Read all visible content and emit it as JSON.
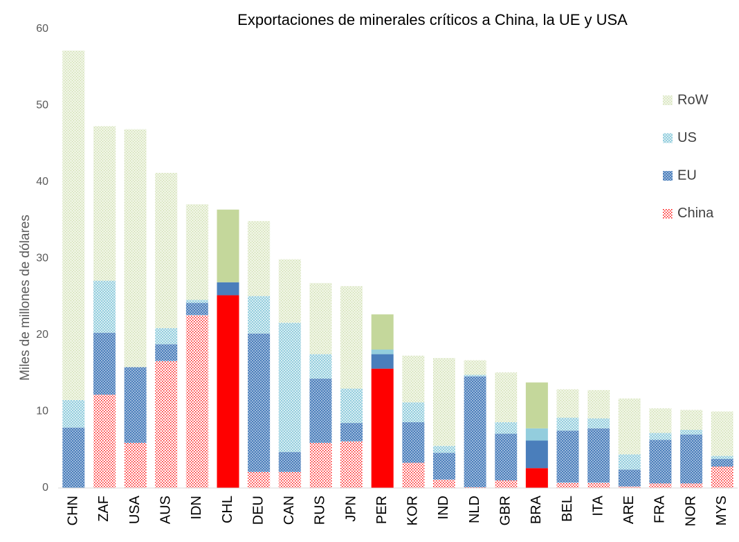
{
  "chart_data": {
    "type": "stacked_bar",
    "title": "Exportaciones de minerales críticos a China, la UE y USA",
    "y_label": "Miles de millones de dólares",
    "categories": [
      "CHN",
      "ZAF",
      "USA",
      "AUS",
      "IDN",
      "CHL",
      "DEU",
      "CAN",
      "RUS",
      "JPN",
      "PER",
      "KOR",
      "IND",
      "NLD",
      "GBR",
      "BRA",
      "BEL",
      "ITA",
      "ARE",
      "FRA",
      "NOR",
      "MYS"
    ],
    "bar_fills": [
      "pattern",
      "pattern",
      "pattern",
      "pattern",
      "pattern",
      "solid",
      "pattern",
      "pattern",
      "pattern",
      "pattern",
      "solid",
      "pattern",
      "pattern",
      "pattern",
      "pattern",
      "solid",
      "pattern",
      "pattern",
      "pattern",
      "pattern",
      "pattern",
      "pattern"
    ],
    "series": [
      {
        "name": "China",
        "color": "#ff0000",
        "values": [
          0,
          12.2,
          5.9,
          16.6,
          22.6,
          25.2,
          2.1,
          2.1,
          5.9,
          6.1,
          15.6,
          3.3,
          1.1,
          0.1,
          1.0,
          2.6,
          0.7,
          0.7,
          0.2,
          0.6,
          0.6,
          2.8
        ]
      },
      {
        "name": "EU",
        "color": "#4a7ebb",
        "values": [
          7.9,
          8.1,
          9.9,
          2.2,
          1.6,
          1.7,
          18.1,
          2.6,
          8.4,
          2.4,
          1.9,
          5.3,
          3.5,
          14.5,
          6.1,
          3.6,
          6.8,
          7.1,
          2.2,
          5.7,
          6.4,
          1.0
        ]
      },
      {
        "name": "US",
        "color": "#93cddd",
        "values": [
          3.6,
          6.8,
          0,
          2.1,
          0.4,
          0,
          4.9,
          16.9,
          3.2,
          4.5,
          0.6,
          2.6,
          0.9,
          0.2,
          1.5,
          1.6,
          1.7,
          1.3,
          2.0,
          0.9,
          0.6,
          0.4
        ]
      },
      {
        "name": "RoW",
        "color": "#c4d79b",
        "values": [
          45.7,
          20.2,
          31.1,
          20.3,
          12.5,
          9.5,
          9.8,
          8.3,
          9.3,
          13.4,
          4.6,
          6.1,
          11.5,
          1.9,
          6.5,
          6.0,
          3.7,
          3.7,
          7.3,
          3.2,
          2.6,
          5.8
        ]
      }
    ],
    "ylim": [
      0,
      60
    ],
    "yticks": [
      0,
      10,
      20,
      30,
      40,
      50,
      60
    ],
    "grid": false,
    "legend": "right"
  }
}
